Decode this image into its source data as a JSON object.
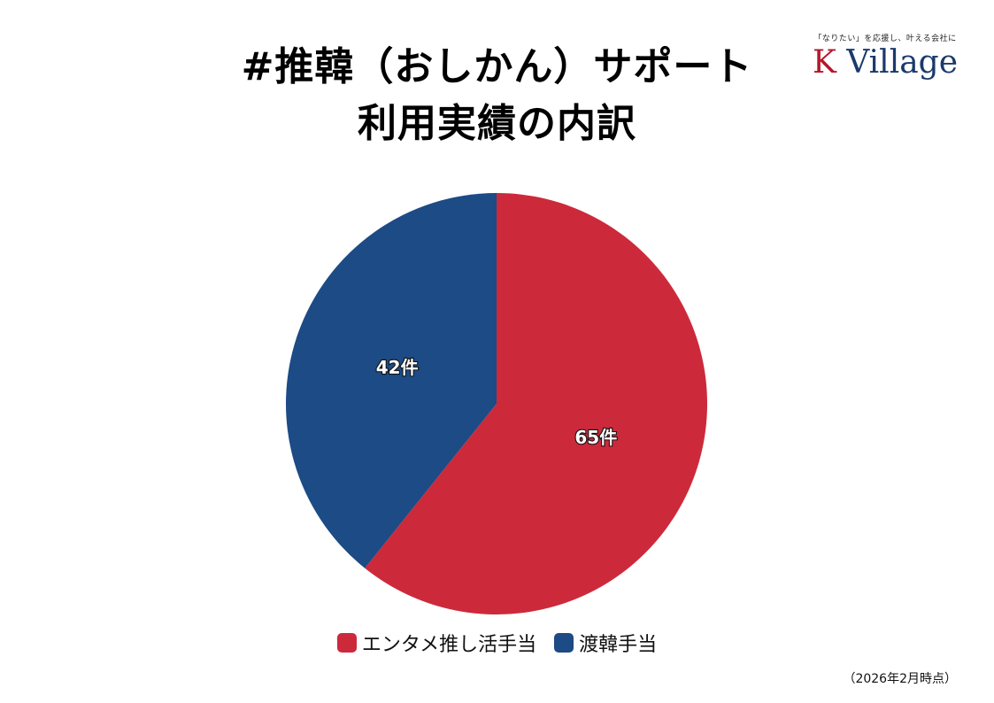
{
  "title": {
    "line1": "#推韓（おしかん）サポート",
    "line2": "利用実績の内訳"
  },
  "logo": {
    "tagline": "「なりたい」を応援し、叶える会社に",
    "brand_k": "K",
    "brand_rest": " Village"
  },
  "footnote": "（2026年2月時点）",
  "colors": {
    "red": "#cc2a3b",
    "blue": "#1c4b85",
    "label_text": "#ffffff"
  },
  "chart_data": {
    "type": "pie",
    "categories": [
      "エンタメ推し活手当",
      "渡韓手当"
    ],
    "values": [
      65,
      42
    ],
    "unit": "件",
    "data_labels": [
      "65件",
      "42件"
    ],
    "colors": [
      "#cc2a3b",
      "#1c4b85"
    ],
    "start": "12 o'clock, clockwise",
    "legend": "bottom"
  }
}
